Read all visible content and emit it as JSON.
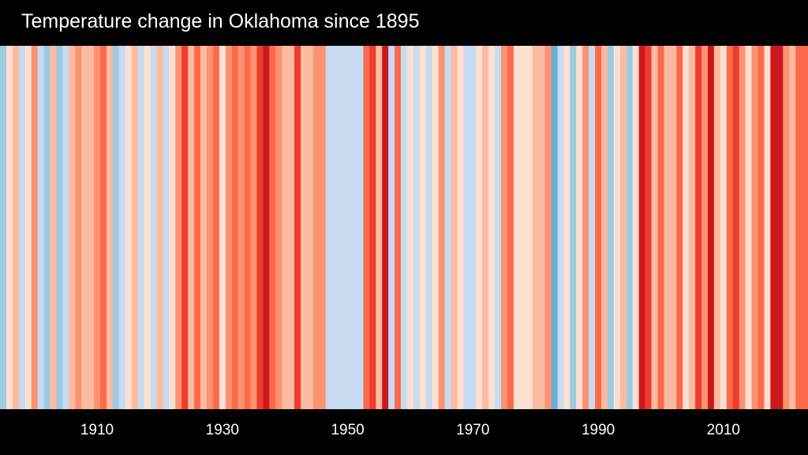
{
  "chart_data": {
    "type": "heatmap",
    "style": "warming-stripes",
    "title": "Temperature change in Oklahoma since 1895",
    "x_start": 1895,
    "x_end": 2023,
    "ticks": [
      "1910",
      "1930",
      "1950",
      "1970",
      "1990",
      "2010"
    ],
    "tick_years": [
      1910,
      1930,
      1950,
      1970,
      1990,
      2010
    ],
    "anomaly_scale": [
      -3,
      3
    ],
    "palette": [
      "#08306b",
      "#08519c",
      "#2171b5",
      "#4292c6",
      "#6baed6",
      "#9ecae1",
      "#c6dbef",
      "#deebf7",
      "#fee0d2",
      "#fcbba1",
      "#fc9272",
      "#fb6a4a",
      "#ef3b2c",
      "#cb181d",
      "#a50f15",
      "#67000d"
    ],
    "levels": [
      -2,
      0,
      1,
      -1,
      0,
      2,
      -1,
      -2,
      1,
      -2,
      -1,
      1,
      2,
      1,
      1,
      2,
      3,
      1,
      -2,
      -1,
      0,
      1,
      -1,
      0,
      -1,
      1,
      -1,
      0,
      2,
      4,
      1,
      3,
      1,
      2,
      3,
      0,
      2,
      3,
      2,
      3,
      2,
      4,
      5,
      3,
      2,
      1,
      1,
      4,
      1,
      1,
      2,
      2,
      -1,
      -1,
      -1,
      -1,
      -1,
      -1,
      3,
      4,
      1,
      5,
      -1,
      3,
      -1,
      0,
      -1,
      0,
      -1,
      0,
      2,
      -1,
      1,
      0,
      -1,
      -1,
      0,
      1,
      0,
      -1,
      2,
      3,
      0,
      0,
      0,
      1,
      1,
      2,
      -3,
      -1,
      0,
      -2,
      0,
      2,
      -1,
      3,
      1,
      -2,
      0,
      1,
      -2,
      0,
      5,
      4,
      1,
      3,
      1,
      1,
      3,
      0,
      1,
      4,
      2,
      5,
      1,
      0,
      3,
      4,
      2,
      0,
      2,
      3,
      0,
      5,
      5,
      2,
      1,
      3,
      3
    ]
  }
}
